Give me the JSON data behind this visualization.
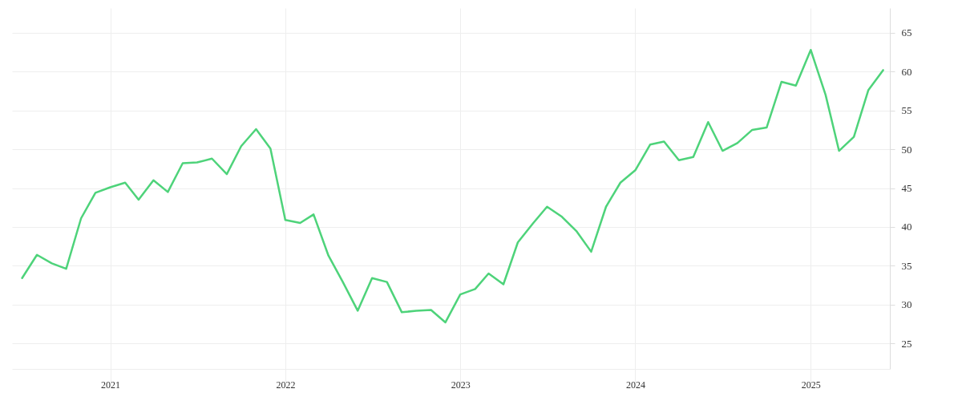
{
  "chart_data": {
    "type": "line",
    "x": [
      "2020-07",
      "2020-08",
      "2020-09",
      "2020-10",
      "2020-11",
      "2020-12",
      "2021-01",
      "2021-02",
      "2021-03",
      "2021-04",
      "2021-05",
      "2021-06",
      "2021-07",
      "2021-08",
      "2021-09",
      "2021-10",
      "2021-11",
      "2021-12",
      "2022-01",
      "2022-02",
      "2022-03",
      "2022-04",
      "2022-05",
      "2022-06",
      "2022-07",
      "2022-08",
      "2022-09",
      "2022-10",
      "2022-11",
      "2022-12",
      "2023-01",
      "2023-02",
      "2023-03",
      "2023-04",
      "2023-05",
      "2023-06",
      "2023-07",
      "2023-08",
      "2023-09",
      "2023-10",
      "2023-11",
      "2023-12",
      "2024-01",
      "2024-02",
      "2024-03",
      "2024-04",
      "2024-05",
      "2024-06",
      "2024-07",
      "2024-08",
      "2024-09",
      "2024-10",
      "2024-11",
      "2024-12",
      "2025-01",
      "2025-02",
      "2025-03",
      "2025-04",
      "2025-05",
      "2025-06"
    ],
    "series": [
      {
        "color": "#4ed37a",
        "values": [
          33.4,
          36.4,
          35.3,
          34.6,
          41.1,
          44.4,
          45.1,
          45.7,
          43.5,
          46.0,
          44.5,
          48.2,
          48.3,
          48.8,
          46.8,
          50.4,
          52.6,
          50.1,
          40.9,
          40.5,
          41.6,
          36.3,
          32.9,
          29.2,
          33.4,
          32.9,
          29.0,
          29.2,
          29.3,
          27.7,
          31.3,
          32.0,
          34.0,
          32.6,
          38.0,
          40.4,
          42.6,
          41.3,
          39.4,
          36.8,
          42.6,
          45.7,
          47.3,
          50.6,
          51.0,
          48.6,
          49.0,
          53.5,
          49.8,
          50.8,
          52.5,
          52.8,
          58.7,
          58.2,
          62.8,
          57.0,
          49.8,
          51.6,
          57.6,
          60.2
        ]
      }
    ],
    "xlim": [
      "2020-06-10",
      "2025-06-15"
    ],
    "xticks": [
      {
        "value": "2021",
        "label": "2021"
      },
      {
        "value": "2022",
        "label": "2022"
      },
      {
        "value": "2023",
        "label": "2023"
      },
      {
        "value": "2024",
        "label": "2024"
      },
      {
        "value": "2025",
        "label": "2025"
      }
    ],
    "ylim": [
      21.7,
      68.2
    ],
    "yticks": [
      25,
      30,
      35,
      40,
      45,
      50,
      55,
      60,
      65
    ],
    "grid": true,
    "line_style": "solid",
    "marker": "none"
  }
}
